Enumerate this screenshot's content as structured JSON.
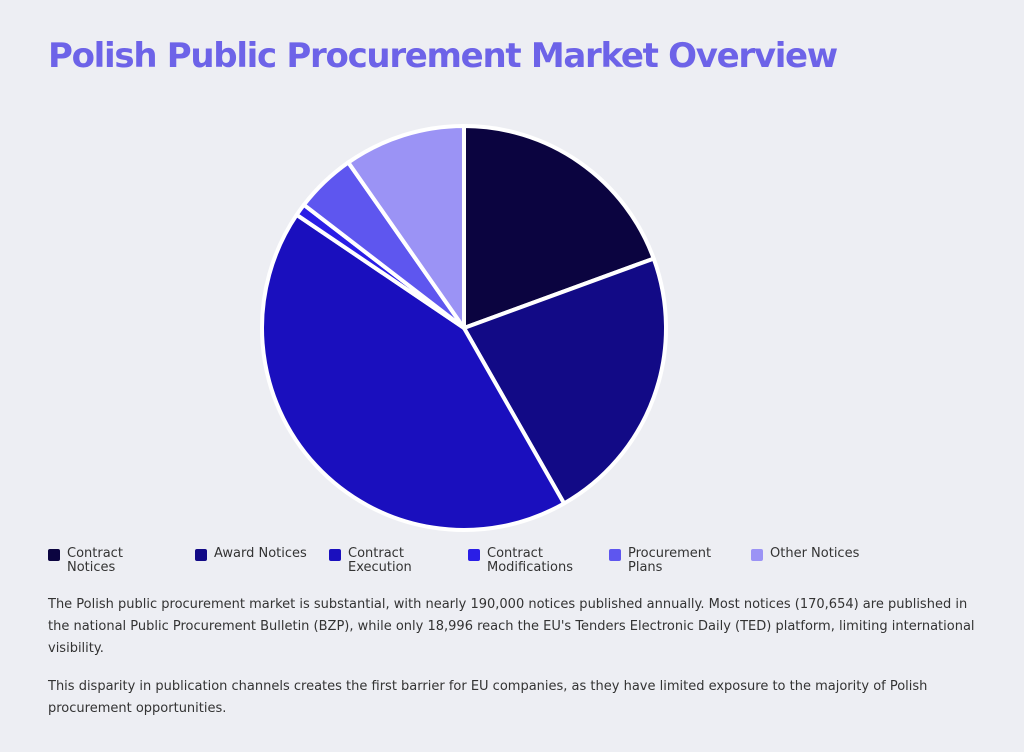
{
  "title": "Polish Public Procurement Market Overview",
  "chart_data": {
    "type": "pie",
    "categories": [
      "Contract Notices",
      "Award Notices",
      "Contract Execution",
      "Contract Modifications",
      "Procurement Plans",
      "Other Notices"
    ],
    "values": [
      20,
      23,
      44,
      1,
      5,
      10
    ],
    "colors": [
      "#0b0440",
      "#120a86",
      "#1a0fbe",
      "#2a1ee6",
      "#5e56ef",
      "#9b93f5"
    ],
    "legend_labels": [
      [
        "Contract",
        "Notices"
      ],
      [
        "Award Notices"
      ],
      [
        "Contract",
        "Execution"
      ],
      [
        "Contract",
        "Modifications"
      ],
      [
        "Procurement",
        "Plans"
      ],
      [
        "Other Notices"
      ]
    ],
    "legend_position": "bottom"
  },
  "paragraphs": [
    "The Polish public procurement market is substantial, with nearly 190,000 notices published annually. Most notices (170,654) are published in the national Public Procurement Bulletin (BZP), while only 18,996 reach the EU's Tenders Electronic Daily (TED) platform, limiting international visibility.",
    "This disparity in publication channels creates the first barrier for EU companies, as they have limited exposure to the majority of Polish procurement opportunities."
  ]
}
